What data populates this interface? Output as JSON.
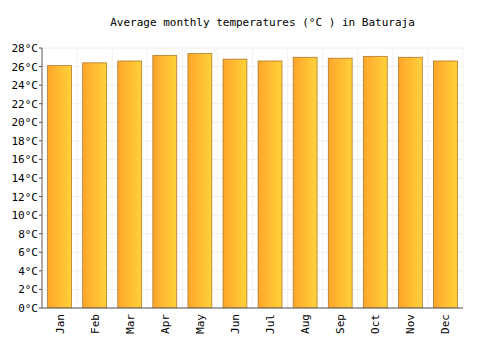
{
  "chart_data": {
    "type": "bar",
    "title": "Average monthly temperatures (°C ) in Baturaja",
    "categories": [
      "Jan",
      "Feb",
      "Mar",
      "Apr",
      "May",
      "Jun",
      "Jul",
      "Aug",
      "Sep",
      "Oct",
      "Nov",
      "Dec"
    ],
    "values": [
      26.1,
      26.4,
      26.6,
      27.2,
      27.4,
      26.8,
      26.6,
      27.0,
      26.9,
      27.1,
      27.0,
      26.6
    ],
    "color": "#ffa52b",
    "ylim": [
      0,
      28
    ],
    "yticks": [
      {
        "value": 0,
        "label": "0°C"
      },
      {
        "value": 2,
        "label": "2°C"
      },
      {
        "value": 4,
        "label": "4°C"
      },
      {
        "value": 6,
        "label": "6°C"
      },
      {
        "value": 8,
        "label": "8°C"
      },
      {
        "value": 10,
        "label": "10°C"
      },
      {
        "value": 12,
        "label": "12°C"
      },
      {
        "value": 14,
        "label": "14°C"
      },
      {
        "value": 16,
        "label": "16°C"
      },
      {
        "value": 18,
        "label": "18°C"
      },
      {
        "value": 20,
        "label": "20°C"
      },
      {
        "value": 22,
        "label": "22°C"
      },
      {
        "value": 24,
        "label": "24°C"
      },
      {
        "value": 26,
        "label": "26°C"
      },
      {
        "value": 28,
        "label": "28°C"
      }
    ],
    "grid": true
  }
}
